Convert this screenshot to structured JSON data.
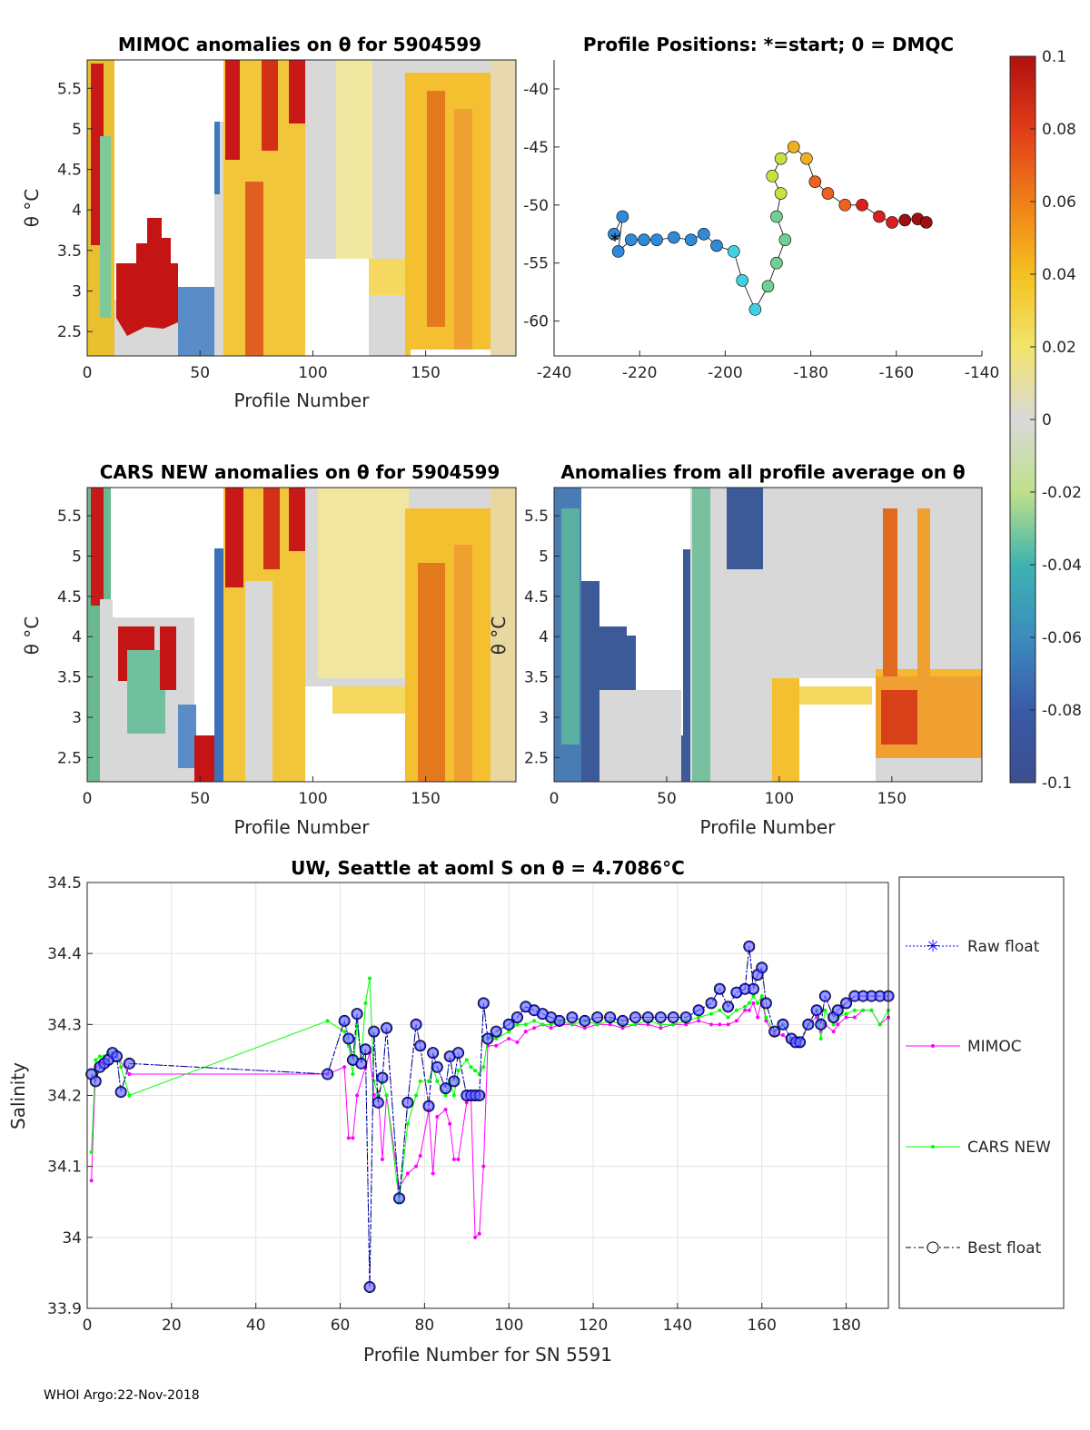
{
  "footer": "WHOI Argo:22-Nov-2018",
  "colorbar": {
    "ticks": [
      "0.1",
      "0.08",
      "0.06",
      "0.04",
      "0.02",
      "0",
      "-0.02",
      "-0.04",
      "-0.06",
      "-0.08",
      "-0.1"
    ],
    "range": [
      -0.1,
      0.1
    ],
    "colormap": "blue-green-gray-yellow-red"
  },
  "chart_data": [
    {
      "type": "heatmap",
      "title": "MIMOC anomalies on θ  for 5904599",
      "xlabel": "Profile Number",
      "ylabel": "θ °C",
      "xlim": [
        0,
        190
      ],
      "ylim": [
        2.2,
        5.85
      ],
      "xticks": [
        "0",
        "50",
        "100",
        "150"
      ],
      "yticks": [
        "2.5",
        "3",
        "3.5",
        "4",
        "4.5",
        "5",
        "5.5"
      ],
      "xtick_values": [
        0,
        50,
        100,
        150
      ],
      "ytick_values": [
        2.5,
        3,
        3.5,
        4,
        4.5,
        5,
        5.5
      ]
    },
    {
      "type": "scatter",
      "title": "Profile Positions: *=start; 0 = DMQC",
      "xlim": [
        -240,
        -140
      ],
      "ylim": [
        -63,
        -37.5
      ],
      "xticks": [
        "-240",
        "-220",
        "-200",
        "-180",
        "-160",
        "-140"
      ],
      "yticks": [
        "-40",
        "-45",
        "-50",
        "-55",
        "-60"
      ],
      "xtick_values": [
        -240,
        -220,
        -200,
        -180,
        -160,
        -140
      ],
      "ytick_values": [
        -40,
        -45,
        -50,
        -55,
        -60
      ],
      "track": [
        [
          -226,
          -52.5
        ],
        [
          -224,
          -51
        ],
        [
          -225,
          -54
        ],
        [
          -222,
          -53
        ],
        [
          -219,
          -53
        ],
        [
          -216,
          -53
        ],
        [
          -212,
          -52.8
        ],
        [
          -208,
          -53
        ],
        [
          -205,
          -52.5
        ],
        [
          -202,
          -53.5
        ],
        [
          -198,
          -54
        ],
        [
          -196,
          -56.5
        ],
        [
          -193,
          -59
        ],
        [
          -190,
          -57
        ],
        [
          -188,
          -55
        ],
        [
          -186,
          -53
        ],
        [
          -188,
          -51
        ],
        [
          -187,
          -49
        ],
        [
          -189,
          -47.5
        ],
        [
          -187,
          -46
        ],
        [
          -184,
          -45
        ],
        [
          -181,
          -46
        ],
        [
          -179,
          -48
        ],
        [
          -176,
          -49
        ],
        [
          -172,
          -50
        ],
        [
          -168,
          -50
        ],
        [
          -164,
          -51
        ],
        [
          -161,
          -51.5
        ],
        [
          -158,
          -51.3
        ],
        [
          -155,
          -51.2
        ],
        [
          -153,
          -51.5
        ]
      ],
      "start_label": "*"
    },
    {
      "type": "heatmap",
      "title": "CARS NEW anomalies on θ for 5904599",
      "xlabel": "Profile Number",
      "ylabel": "θ °C",
      "xlim": [
        0,
        190
      ],
      "ylim": [
        2.2,
        5.85
      ],
      "xticks": [
        "0",
        "50",
        "100",
        "150"
      ],
      "yticks": [
        "2.5",
        "3",
        "3.5",
        "4",
        "4.5",
        "5",
        "5.5"
      ],
      "xtick_values": [
        0,
        50,
        100,
        150
      ],
      "ytick_values": [
        2.5,
        3,
        3.5,
        4,
        4.5,
        5,
        5.5
      ]
    },
    {
      "type": "heatmap",
      "title": "Anomalies from all profile average on θ",
      "xlabel": "Profile Number",
      "ylabel": "θ °C",
      "xlim": [
        0,
        190
      ],
      "ylim": [
        2.2,
        5.85
      ],
      "xticks": [
        "0",
        "50",
        "100",
        "150"
      ],
      "yticks": [
        "2.5",
        "3",
        "3.5",
        "4",
        "4.5",
        "5",
        "5.5"
      ],
      "xtick_values": [
        0,
        50,
        100,
        150
      ],
      "ytick_values": [
        2.5,
        3,
        3.5,
        4,
        4.5,
        5,
        5.5
      ]
    },
    {
      "type": "line",
      "title": "UW, Seattle at aoml S on θ = 4.7086°C",
      "xlabel": "Profile Number for SN 5591",
      "ylabel": "Salinity",
      "xlim": [
        0,
        190
      ],
      "ylim": [
        33.9,
        34.5
      ],
      "xticks": [
        "0",
        "20",
        "40",
        "60",
        "80",
        "100",
        "120",
        "140",
        "160",
        "180"
      ],
      "yticks": [
        "33.9",
        "34",
        "34.1",
        "34.2",
        "34.3",
        "34.4",
        "34.5"
      ],
      "xtick_values": [
        0,
        20,
        40,
        60,
        80,
        100,
        120,
        140,
        160,
        180
      ],
      "ytick_values": [
        33.9,
        34.0,
        34.1,
        34.2,
        34.3,
        34.4,
        34.5
      ],
      "legend": [
        "Raw float",
        "MIMOC",
        "CARS NEW",
        "Best float"
      ],
      "legend_position": "outside-right",
      "series": [
        {
          "name": "Raw float",
          "color": "#0000ff",
          "x": [
            1,
            2,
            3,
            4,
            5,
            6,
            7,
            8,
            10,
            57,
            61,
            62,
            63,
            64,
            65,
            66,
            67,
            68,
            69,
            70,
            71,
            74,
            76,
            78,
            79,
            81,
            82,
            83,
            85,
            86,
            87,
            88,
            90,
            91,
            92,
            93,
            94,
            95,
            97,
            100,
            102,
            104,
            106,
            108,
            110,
            112,
            115,
            118,
            121,
            124,
            127,
            130,
            133,
            136,
            139,
            142,
            145,
            148,
            150,
            152,
            154,
            156,
            157,
            158,
            159,
            160,
            161,
            163,
            165,
            167,
            168,
            169,
            171,
            173,
            174,
            175,
            177,
            178,
            180,
            182,
            184,
            186,
            188,
            190
          ],
          "values": [
            34.23,
            34.22,
            34.24,
            34.245,
            34.25,
            34.26,
            34.255,
            34.205,
            34.245,
            34.23,
            34.305,
            34.28,
            34.25,
            34.315,
            34.245,
            34.265,
            33.93,
            34.29,
            34.19,
            34.225,
            34.295,
            34.055,
            34.19,
            34.3,
            34.27,
            34.185,
            34.26,
            34.24,
            34.21,
            34.255,
            34.22,
            34.26,
            34.2,
            34.2,
            34.2,
            34.2,
            34.33,
            34.28,
            34.29,
            34.3,
            34.31,
            34.325,
            34.32,
            34.315,
            34.31,
            34.305,
            34.31,
            34.305,
            34.31,
            34.31,
            34.305,
            34.31,
            34.31,
            34.31,
            34.31,
            34.31,
            34.32,
            34.33,
            34.35,
            34.325,
            34.345,
            34.35,
            34.41,
            34.35,
            34.37,
            34.38,
            34.33,
            34.29,
            34.3,
            34.28,
            34.275,
            34.275,
            34.3,
            34.32,
            34.3,
            34.34,
            34.31,
            34.32,
            34.33,
            34.34,
            34.34,
            34.34,
            34.34,
            34.34
          ]
        },
        {
          "name": "MIMOC",
          "color": "#ff00ff",
          "x": [
            1,
            2,
            3,
            5,
            7,
            10,
            57,
            61,
            62,
            63,
            64,
            66,
            67,
            68,
            69,
            70,
            71,
            74,
            76,
            78,
            79,
            81,
            82,
            83,
            85,
            86,
            87,
            88,
            90,
            91,
            92,
            93,
            94,
            95,
            97,
            100,
            102,
            104,
            106,
            108,
            110,
            112,
            115,
            118,
            121,
            124,
            127,
            130,
            133,
            136,
            139,
            142,
            145,
            148,
            150,
            152,
            154,
            156,
            157,
            158,
            159,
            160,
            161,
            163,
            165,
            167,
            168,
            169,
            171,
            173,
            174,
            175,
            177,
            178,
            180,
            182,
            184,
            186,
            188,
            190
          ],
          "values": [
            34.08,
            34.24,
            34.245,
            34.25,
            34.255,
            34.23,
            34.23,
            34.24,
            34.14,
            34.14,
            34.2,
            34.24,
            34.26,
            34.2,
            34.205,
            34.11,
            34.2,
            34.07,
            34.09,
            34.1,
            34.115,
            34.18,
            34.09,
            34.17,
            34.18,
            34.16,
            34.11,
            34.11,
            34.19,
            34.2,
            34.0,
            34.005,
            34.1,
            34.27,
            34.27,
            34.28,
            34.275,
            34.29,
            34.295,
            34.3,
            34.295,
            34.3,
            34.3,
            34.295,
            34.3,
            34.3,
            34.295,
            34.3,
            34.3,
            34.295,
            34.3,
            34.3,
            34.305,
            34.3,
            34.3,
            34.3,
            34.305,
            34.32,
            34.32,
            34.33,
            34.31,
            34.335,
            34.305,
            34.285,
            34.285,
            34.275,
            34.28,
            34.27,
            34.3,
            34.31,
            34.29,
            34.3,
            34.29,
            34.3,
            34.31,
            34.31,
            34.32,
            34.32,
            34.3,
            34.31
          ]
        },
        {
          "name": "CARS NEW",
          "color": "#00ff00",
          "x": [
            1,
            2,
            3,
            4,
            5,
            6,
            7,
            8,
            10,
            57,
            61,
            62,
            63,
            64,
            65,
            66,
            67,
            68,
            69,
            70,
            71,
            74,
            76,
            78,
            79,
            81,
            82,
            83,
            85,
            86,
            87,
            88,
            90,
            91,
            92,
            93,
            94,
            95,
            97,
            100,
            102,
            104,
            106,
            108,
            110,
            112,
            115,
            118,
            121,
            124,
            127,
            130,
            133,
            136,
            139,
            142,
            145,
            148,
            150,
            152,
            154,
            156,
            157,
            158,
            159,
            160,
            161,
            163,
            165,
            167,
            168,
            169,
            171,
            173,
            174,
            175,
            177,
            178,
            180,
            182,
            184,
            186,
            188,
            190
          ],
          "values": [
            34.12,
            34.25,
            34.255,
            34.255,
            34.26,
            34.26,
            34.26,
            34.24,
            34.2,
            34.305,
            34.29,
            34.27,
            34.23,
            34.3,
            34.25,
            34.33,
            34.365,
            34.22,
            34.2,
            34.22,
            34.2,
            34.05,
            34.16,
            34.2,
            34.22,
            34.22,
            34.24,
            34.22,
            34.2,
            34.22,
            34.2,
            34.235,
            34.25,
            34.24,
            34.235,
            34.23,
            34.24,
            34.28,
            34.28,
            34.29,
            34.3,
            34.3,
            34.305,
            34.3,
            34.3,
            34.305,
            34.3,
            34.305,
            34.3,
            34.305,
            34.3,
            34.3,
            34.305,
            34.3,
            34.3,
            34.305,
            34.31,
            34.315,
            34.32,
            34.31,
            34.32,
            34.325,
            34.33,
            34.34,
            34.33,
            34.34,
            34.31,
            34.29,
            34.3,
            34.28,
            34.275,
            34.275,
            34.3,
            34.32,
            34.28,
            34.32,
            34.3,
            34.31,
            34.315,
            34.32,
            34.32,
            34.32,
            34.3,
            34.32
          ]
        },
        {
          "name": "Best float",
          "color": "#000000",
          "x": [
            1,
            2,
            3,
            4,
            5,
            6,
            7,
            8,
            10,
            57,
            61,
            62,
            63,
            64,
            65,
            66,
            67,
            68,
            69,
            70,
            71,
            74,
            76,
            78,
            79,
            81,
            82,
            83,
            85,
            86,
            87,
            88,
            90,
            91,
            92,
            93,
            94,
            95,
            97,
            100,
            102,
            104,
            106,
            108,
            110,
            112,
            115,
            118,
            121,
            124,
            127,
            130,
            133,
            136,
            139,
            142,
            145,
            148,
            150,
            152,
            154,
            156,
            157,
            158,
            159,
            160,
            161,
            163,
            165,
            167,
            168,
            169,
            171,
            173,
            174,
            175,
            177,
            178,
            180,
            182,
            184,
            186,
            188,
            190
          ],
          "values": [
            34.23,
            34.22,
            34.24,
            34.245,
            34.25,
            34.26,
            34.255,
            34.205,
            34.245,
            34.23,
            34.305,
            34.28,
            34.25,
            34.315,
            34.245,
            34.265,
            33.93,
            34.29,
            34.19,
            34.225,
            34.295,
            34.055,
            34.19,
            34.3,
            34.27,
            34.185,
            34.26,
            34.24,
            34.21,
            34.255,
            34.22,
            34.26,
            34.2,
            34.2,
            34.2,
            34.2,
            34.33,
            34.28,
            34.29,
            34.3,
            34.31,
            34.325,
            34.32,
            34.315,
            34.31,
            34.305,
            34.31,
            34.305,
            34.31,
            34.31,
            34.305,
            34.31,
            34.31,
            34.31,
            34.31,
            34.31,
            34.32,
            34.33,
            34.35,
            34.325,
            34.345,
            34.35,
            34.41,
            34.35,
            34.37,
            34.38,
            34.33,
            34.29,
            34.3,
            34.28,
            34.275,
            34.275,
            34.3,
            34.32,
            34.3,
            34.34,
            34.31,
            34.32,
            34.33,
            34.34,
            34.34,
            34.34,
            34.34,
            34.34
          ]
        }
      ]
    }
  ]
}
